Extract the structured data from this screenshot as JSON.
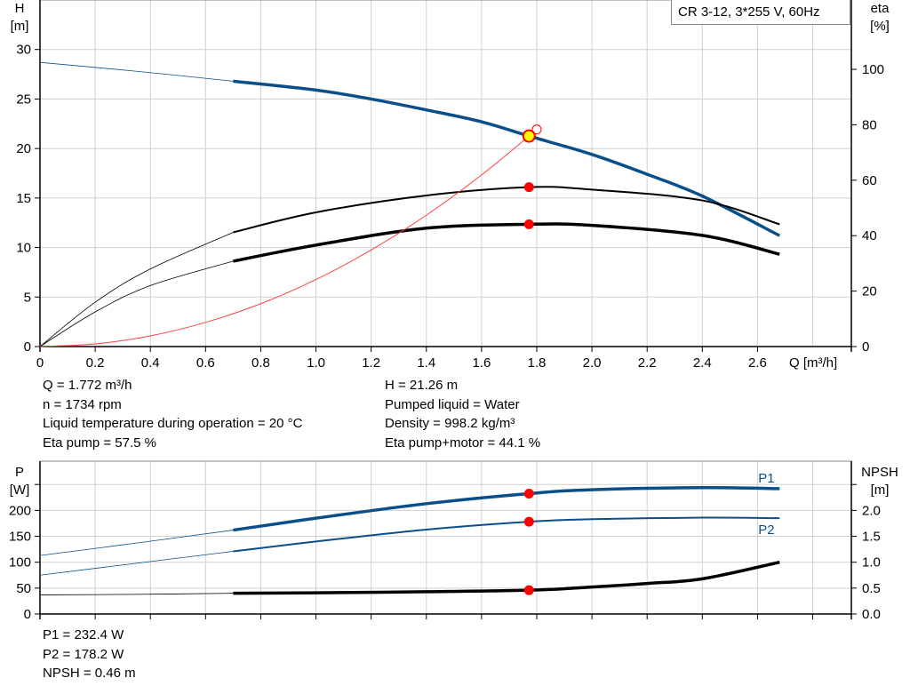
{
  "title_box": "CR 3-12, 3*255 V, 60Hz",
  "colors": {
    "head": "#0b4f8a",
    "eta": "#000000",
    "system": "#ff4040",
    "power": "#0b4f8a",
    "npsh": "#000000",
    "duty_marker": "#ff0000",
    "duty_fill_head": "#ffff00",
    "grid": "#d0d0d0"
  },
  "chart_data": [
    {
      "type": "line",
      "x_label": "Q [m³/h]",
      "y_label": [
        "H",
        "[m]"
      ],
      "y2_label": [
        "eta",
        "[%]"
      ],
      "xlim": [
        0,
        2.94
      ],
      "ylim": [
        0,
        35
      ],
      "y2lim": [
        0,
        125
      ],
      "x_ticks": [
        "0",
        "0.2",
        "0.4",
        "0.6",
        "0.8",
        "1.0",
        "1.2",
        "1.4",
        "1.6",
        "1.8",
        "2.0",
        "2.2",
        "2.4",
        "2.6"
      ],
      "y_ticks": [
        "0",
        "5",
        "10",
        "15",
        "20",
        "25",
        "30"
      ],
      "y2_ticks": [
        "0",
        "20",
        "40",
        "60",
        "80",
        "100"
      ],
      "grid": true,
      "series": [
        {
          "key": "H",
          "axis": "left",
          "x": [
            0,
            0.35,
            0.7,
            1.0,
            1.2,
            1.4,
            1.6,
            1.772,
            2.0,
            2.2,
            2.4,
            2.68
          ],
          "y": [
            28.7,
            27.8,
            26.8,
            25.9,
            25.0,
            23.9,
            22.7,
            21.26,
            19.4,
            17.4,
            15.2,
            11.2
          ],
          "thin_until": 0.7
        },
        {
          "key": "eta_pump",
          "axis": "right",
          "x": [
            0,
            0.2,
            0.4,
            0.7,
            1.0,
            1.4,
            1.772,
            2.0,
            2.4,
            2.68
          ],
          "y": [
            0,
            16,
            28,
            41.2,
            48.4,
            54.5,
            57.5,
            56.6,
            52.7,
            44.1
          ],
          "thin_until": 0.7
        },
        {
          "key": "eta_pump_motor",
          "axis": "right",
          "x": [
            0,
            0.2,
            0.4,
            0.7,
            1.0,
            1.4,
            1.772,
            2.0,
            2.4,
            2.68
          ],
          "y": [
            0,
            12.5,
            22,
            30.8,
            36.6,
            42.7,
            44.1,
            43.7,
            40.1,
            33.3
          ],
          "thin_until": 0.7
        },
        {
          "key": "system",
          "axis": "left",
          "x": [
            0,
            0.2,
            0.4,
            0.6,
            0.8,
            1.0,
            1.2,
            1.4,
            1.6,
            1.772,
            1.8
          ],
          "y": [
            0,
            0.27,
            1.08,
            2.44,
            4.33,
            6.77,
            9.75,
            13.27,
            17.33,
            21.26,
            21.93
          ]
        }
      ],
      "duty_point": {
        "Q": 1.772,
        "H": 21.26,
        "eta_pump": 57.5,
        "eta_pump_motor": 44.1
      },
      "system_end": {
        "Q": 1.8,
        "H": 21.93
      }
    },
    {
      "type": "line",
      "y_label": [
        "P",
        "[W]"
      ],
      "y2_label": [
        "NPSH",
        "[m]"
      ],
      "xlim": [
        0,
        2.94
      ],
      "ylim": [
        0,
        295
      ],
      "y2lim": [
        0,
        2.95
      ],
      "y_ticks": [
        "0",
        "50",
        "100",
        "150",
        "200",
        ""
      ],
      "y2_ticks": [
        "0.0",
        "0.5",
        "1.0",
        "1.5",
        "2.0",
        ""
      ],
      "grid": true,
      "series": [
        {
          "key": "P1",
          "name": "P1",
          "axis": "left",
          "x": [
            0,
            0.35,
            0.7,
            1.0,
            1.4,
            1.772,
            2.0,
            2.4,
            2.68
          ],
          "y": [
            113,
            137,
            162,
            185,
            213,
            232.4,
            240,
            244,
            242
          ],
          "thin_until": 0.7
        },
        {
          "key": "P2",
          "name": "P2",
          "axis": "left",
          "x": [
            0,
            0.35,
            0.7,
            1.0,
            1.4,
            1.772,
            2.0,
            2.4,
            2.68
          ],
          "y": [
            75,
            98,
            121,
            140,
            163,
            178.2,
            183,
            186,
            185
          ],
          "thin_until": 0.7
        },
        {
          "key": "NPSH",
          "axis": "right",
          "x": [
            0,
            0.35,
            0.7,
            1.0,
            1.4,
            1.772,
            2.0,
            2.2,
            2.4,
            2.68
          ],
          "y": [
            0.37,
            0.38,
            0.4,
            0.41,
            0.43,
            0.46,
            0.52,
            0.59,
            0.68,
            1.0
          ],
          "thin_until": 0.7
        }
      ],
      "duty_point": {
        "Q": 1.772,
        "P1": 232.4,
        "P2": 178.2,
        "NPSH": 0.46
      }
    }
  ],
  "info_top": {
    "left": [
      "Q = 1.772 m³/h",
      "n = 1734 rpm",
      "Liquid temperature during operation = 20 °C",
      "Eta pump = 57.5 %"
    ],
    "right": [
      "H = 21.26 m",
      "Pumped liquid = Water",
      "Density = 998.2 kg/m³",
      "Eta pump+motor = 44.1 %"
    ]
  },
  "info_bottom": [
    "P1 = 232.4 W",
    "P2 = 178.2 W",
    "NPSH = 0.46 m"
  ]
}
